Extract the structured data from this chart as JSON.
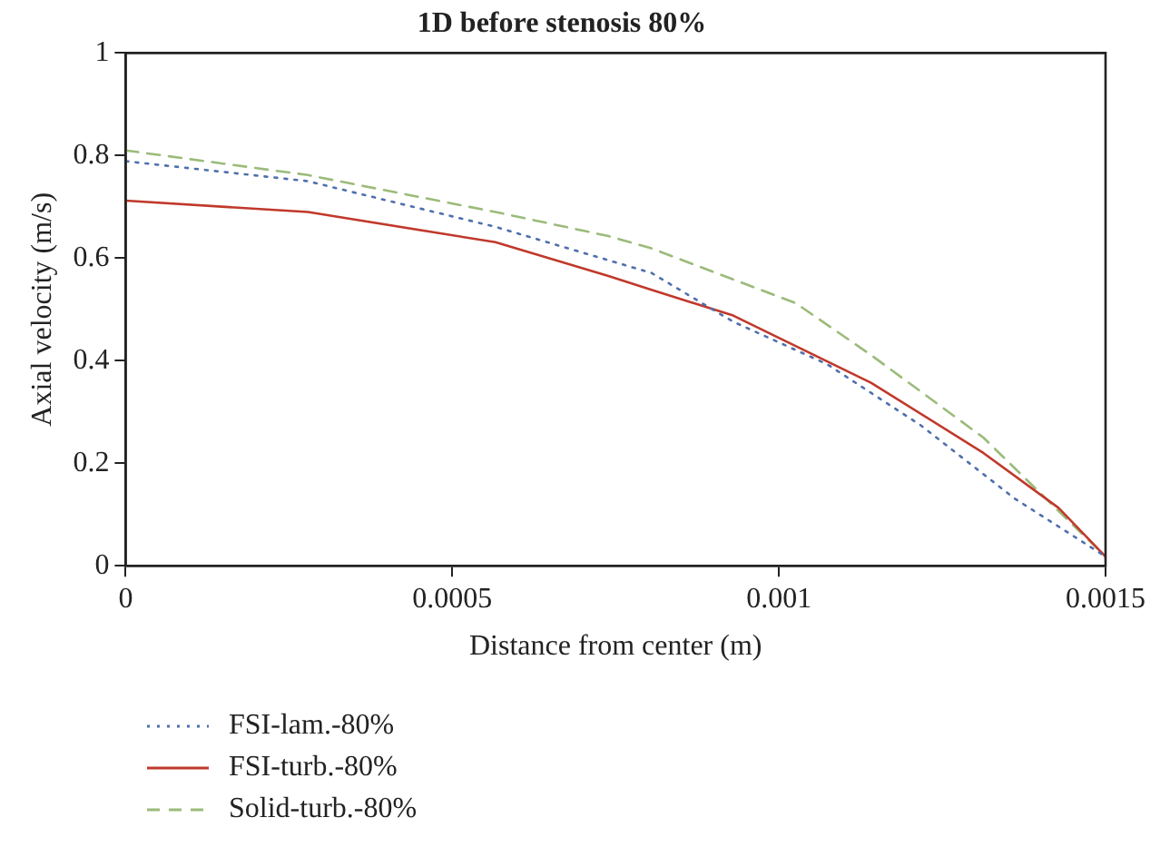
{
  "chart_data": {
    "type": "line",
    "title": "1D before stenosis 80%",
    "xlabel": "Distance from center (m)",
    "ylabel": "Axial velocity (m/s)",
    "xlim": [
      0,
      0.0015
    ],
    "xticks": [
      0,
      0.0005,
      0.001,
      0.0015
    ],
    "ylim": [
      0,
      1
    ],
    "yticks": [
      0,
      0.2,
      0.4,
      0.6,
      0.8,
      1
    ],
    "grid": false,
    "legend": "bottom left",
    "marker": "none",
    "series": [
      {
        "name": "FSI-lam.-80%",
        "color": "#4f6fad",
        "line_style": "dotted",
        "x": [
          0,
          0.000279,
          0.000566,
          0.000805,
          0.00093,
          0.001074,
          0.001217,
          0.001361,
          0.0015
        ],
        "values": [
          0.789,
          0.75,
          0.661,
          0.571,
          0.476,
          0.393,
          0.274,
          0.131,
          0.018
        ]
      },
      {
        "name": "FSI-turb.-80%",
        "color": "#c0392b",
        "line_style": "solid",
        "x": [
          0,
          0.000279,
          0.000566,
          0.000739,
          0.000805,
          0.00093,
          0.001141,
          0.001313,
          0.001428,
          0.0015
        ],
        "values": [
          0.712,
          0.69,
          0.631,
          0.565,
          0.538,
          0.488,
          0.357,
          0.22,
          0.113,
          0.018
        ]
      },
      {
        "name": "Solid-turb.-80%",
        "color": "#9bbb7a",
        "line_style": "dashed",
        "x": [
          0,
          0.000279,
          0.000566,
          0.000739,
          0.000805,
          0.001026,
          0.001141,
          0.001313,
          0.001428,
          0.0015
        ],
        "values": [
          0.81,
          0.762,
          0.69,
          0.643,
          0.619,
          0.512,
          0.411,
          0.25,
          0.107,
          0.018
        ]
      }
    ]
  }
}
